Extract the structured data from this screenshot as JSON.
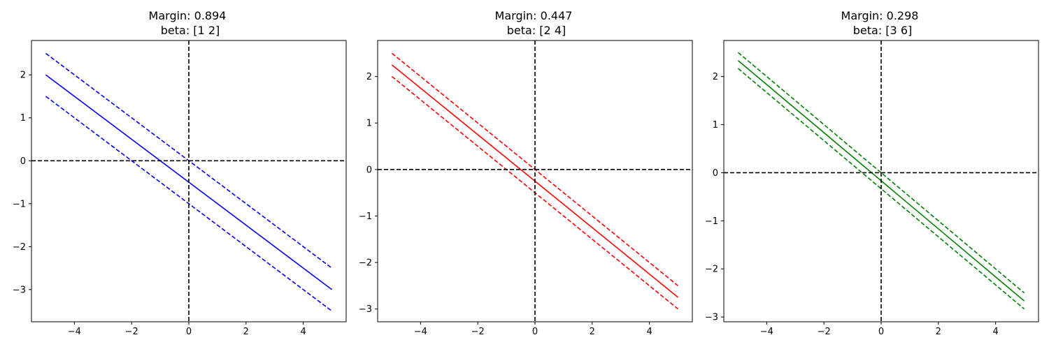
{
  "chart_data": [
    {
      "type": "line",
      "title_line1": "Margin: 0.894",
      "title_line2": "beta: [1 2]",
      "xlim": [
        -5.5,
        5.5
      ],
      "ylim": [
        -3.75,
        2.8
      ],
      "xticks": [
        -4,
        -2,
        0,
        2,
        4
      ],
      "yticks": [
        -3,
        -2,
        -1,
        0,
        1,
        2
      ],
      "xtick_labels": [
        "−4",
        "−2",
        "0",
        "2",
        "4"
      ],
      "ytick_labels": [
        "−3",
        "−2",
        "−1",
        "0",
        "1",
        "2"
      ],
      "color": "#0000ff",
      "series": [
        {
          "style": "solid",
          "x": [
            -5,
            5
          ],
          "y": [
            2.0,
            -3.0
          ]
        },
        {
          "style": "dashed",
          "x": [
            -5,
            5
          ],
          "y": [
            2.5,
            -2.5
          ]
        },
        {
          "style": "dashed",
          "x": [
            -5,
            5
          ],
          "y": [
            1.5,
            -3.5
          ]
        }
      ],
      "axis_lines": {
        "x": 0,
        "y": 0
      },
      "grid": false
    },
    {
      "type": "line",
      "title_line1": "Margin: 0.447",
      "title_line2": "beta: [2 4]",
      "xlim": [
        -5.5,
        5.5
      ],
      "ylim": [
        -3.275,
        2.775
      ],
      "xticks": [
        -4,
        -2,
        0,
        2,
        4
      ],
      "yticks": [
        -3,
        -2,
        -1,
        0,
        1,
        2
      ],
      "xtick_labels": [
        "−4",
        "−2",
        "0",
        "2",
        "4"
      ],
      "ytick_labels": [
        "−3",
        "−2",
        "−1",
        "0",
        "1",
        "2"
      ],
      "color": "#ff0000",
      "series": [
        {
          "style": "solid",
          "x": [
            -5,
            5
          ],
          "y": [
            2.25,
            -2.75
          ]
        },
        {
          "style": "dashed",
          "x": [
            -5,
            5
          ],
          "y": [
            2.5,
            -2.5
          ]
        },
        {
          "style": "dashed",
          "x": [
            -5,
            5
          ],
          "y": [
            2.0,
            -3.0
          ]
        }
      ],
      "axis_lines": {
        "x": 0,
        "y": 0
      },
      "grid": false
    },
    {
      "type": "line",
      "title_line1": "Margin: 0.298",
      "title_line2": "beta: [3 6]",
      "xlim": [
        -5.5,
        5.5
      ],
      "ylim": [
        -3.1,
        2.75
      ],
      "xticks": [
        -4,
        -2,
        0,
        2,
        4
      ],
      "yticks": [
        -3,
        -2,
        -1,
        0,
        1,
        2
      ],
      "xtick_labels": [
        "−4",
        "−2",
        "0",
        "2",
        "4"
      ],
      "ytick_labels": [
        "−3",
        "−2",
        "−1",
        "0",
        "1",
        "2"
      ],
      "color": "#008000",
      "series": [
        {
          "style": "solid",
          "x": [
            -5,
            5
          ],
          "y": [
            2.333,
            -2.667
          ]
        },
        {
          "style": "dashed",
          "x": [
            -5,
            5
          ],
          "y": [
            2.5,
            -2.5
          ]
        },
        {
          "style": "dashed",
          "x": [
            -5,
            5
          ],
          "y": [
            2.167,
            -2.833
          ]
        }
      ],
      "axis_lines": {
        "x": 0,
        "y": 0
      },
      "grid": false
    }
  ]
}
